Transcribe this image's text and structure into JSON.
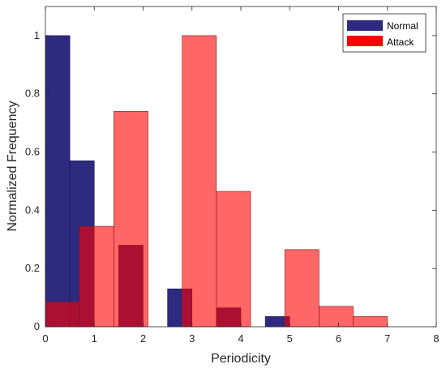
{
  "chart_data": {
    "type": "bar",
    "title": "",
    "xlabel": "Periodicity",
    "ylabel": "Normalized Frequency",
    "xlim": [
      0,
      8
    ],
    "ylim": [
      0,
      1.1
    ],
    "xticks": [
      "0",
      "1",
      "2",
      "3",
      "4",
      "5",
      "6",
      "7",
      "8"
    ],
    "yticks": [
      "0",
      "0.2",
      "0.4",
      "0.6",
      "0.8",
      "1"
    ],
    "grid": false,
    "legend_position": "top-right",
    "series": [
      {
        "name": "Normal",
        "color": "#2d2a80",
        "bars": [
          {
            "x0": 0.0,
            "x1": 0.5,
            "value": 1.0
          },
          {
            "x0": 0.5,
            "x1": 1.0,
            "value": 0.57
          },
          {
            "x0": 1.0,
            "x1": 1.5,
            "value": 0.0
          },
          {
            "x0": 1.5,
            "x1": 2.0,
            "value": 0.28
          },
          {
            "x0": 2.5,
            "x1": 3.0,
            "value": 0.13
          },
          {
            "x0": 3.5,
            "x1": 4.0,
            "value": 0.065
          },
          {
            "x0": 4.5,
            "x1": 5.0,
            "value": 0.035
          }
        ]
      },
      {
        "name": "Attack",
        "color": "#ff0000",
        "bars": [
          {
            "x0": 0.0,
            "x1": 0.7,
            "value": 0.085
          },
          {
            "x0": 0.7,
            "x1": 1.4,
            "value": 0.345
          },
          {
            "x0": 1.4,
            "x1": 2.1,
            "value": 0.74
          },
          {
            "x0": 2.1,
            "x1": 2.8,
            "value": 0.0
          },
          {
            "x0": 2.8,
            "x1": 3.5,
            "value": 1.0
          },
          {
            "x0": 3.5,
            "x1": 4.2,
            "value": 0.465
          },
          {
            "x0": 4.2,
            "x1": 4.9,
            "value": 0.0
          },
          {
            "x0": 4.9,
            "x1": 5.6,
            "value": 0.265
          },
          {
            "x0": 5.6,
            "x1": 6.3,
            "value": 0.07
          },
          {
            "x0": 6.3,
            "x1": 7.0,
            "value": 0.035
          }
        ]
      }
    ]
  }
}
